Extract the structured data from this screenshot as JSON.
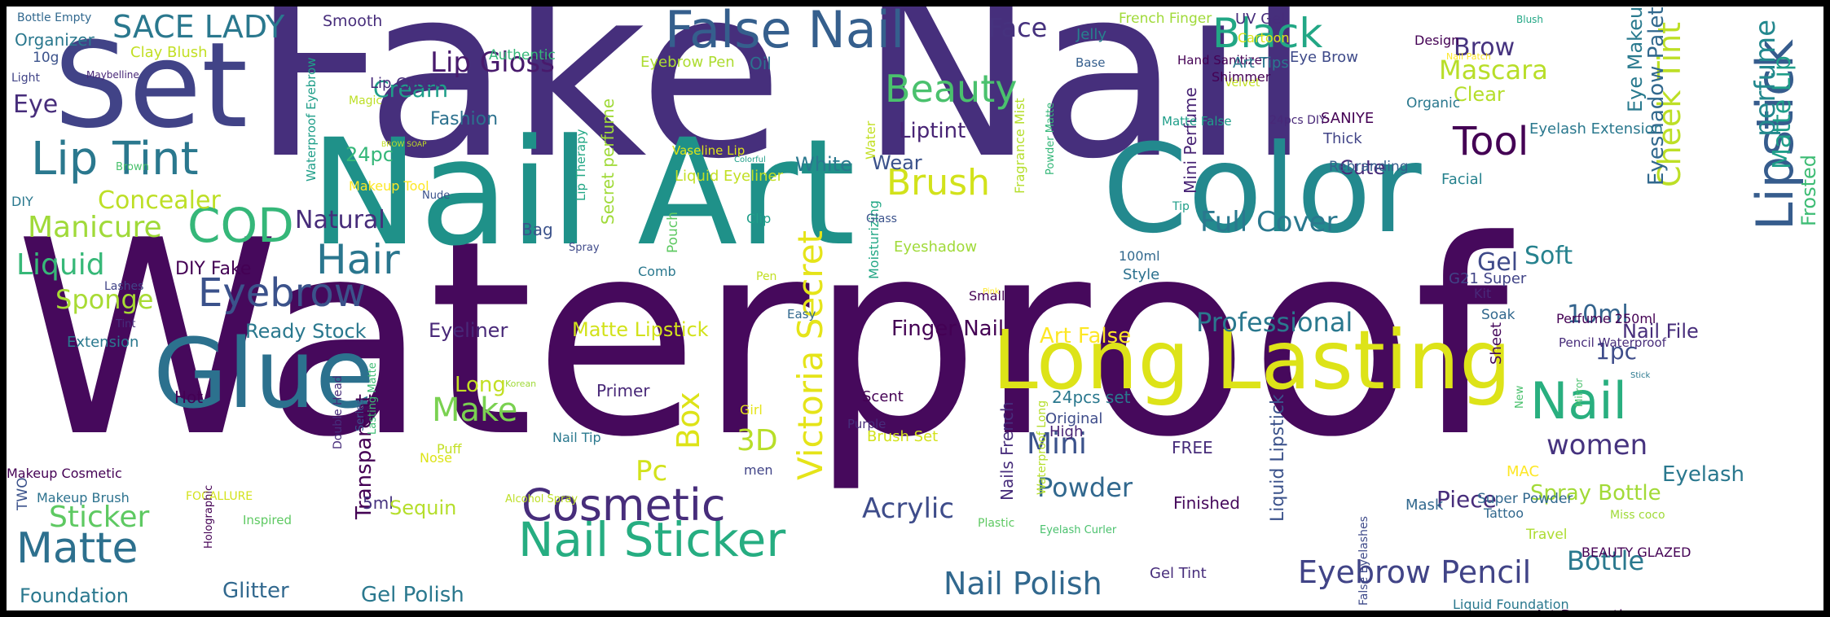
{
  "words": [
    {
      "text": "Waterproof",
      "color": "#46095c",
      "rotate": false
    },
    {
      "text": "Fake Nail",
      "color": "#462f7c",
      "rotate": false
    },
    {
      "text": "Nail Art",
      "color": "#1f9189",
      "rotate": false
    },
    {
      "text": "Makeup",
      "color": "#33608d",
      "rotate": true
    },
    {
      "text": "Color",
      "color": "#23898e",
      "rotate": false
    },
    {
      "text": "Set",
      "color": "#414387",
      "rotate": false
    },
    {
      "text": "Long Lasting",
      "color": "#dde318",
      "rotate": false
    },
    {
      "text": "Glue",
      "color": "#2c718e",
      "rotate": false
    },
    {
      "text": "False Nail",
      "color": "#355f8d",
      "rotate": false
    },
    {
      "text": "Nail Sticker",
      "color": "#26ad81",
      "rotate": false
    },
    {
      "text": "Lipstick",
      "color": "#365c8d",
      "rotate": true
    },
    {
      "text": "Cosmetic",
      "color": "#472d7b",
      "rotate": false
    },
    {
      "text": "Black",
      "color": "#22a785",
      "rotate": false
    },
    {
      "text": "Lip Tint",
      "color": "#2a788e",
      "rotate": false
    },
    {
      "text": "Victoria Secret",
      "color": "#e5e419",
      "rotate": true
    },
    {
      "text": "Nail",
      "color": "#29af7f",
      "rotate": false
    },
    {
      "text": "Matte",
      "color": "#2d708e",
      "rotate": false
    },
    {
      "text": "Beauty",
      "color": "#4ac16d",
      "rotate": false
    },
    {
      "text": "Brush",
      "color": "#d2e21b",
      "rotate": false
    },
    {
      "text": "Tool",
      "color": "#440154",
      "rotate": false
    },
    {
      "text": "COD",
      "color": "#35b779",
      "rotate": false
    },
    {
      "text": "Eyebrow Pencil",
      "color": "#414487",
      "rotate": false
    },
    {
      "text": "Hair",
      "color": "#2a768e",
      "rotate": false
    },
    {
      "text": "Eyebrow",
      "color": "#3b528b",
      "rotate": false
    },
    {
      "text": "Nail Polish",
      "color": "#31688e",
      "rotate": false
    },
    {
      "text": "Full Cover",
      "color": "#2a788e",
      "rotate": false
    },
    {
      "text": "Lip Gloss",
      "color": "#481a6c",
      "rotate": false
    },
    {
      "text": "SACE LADY",
      "color": "#2a788e",
      "rotate": false
    },
    {
      "text": "Professional",
      "color": "#2a788e",
      "rotate": false
    },
    {
      "text": "Makeup Cosmetic",
      "color": "#440154",
      "rotate": false
    },
    {
      "text": "Acrylic",
      "color": "#3e4c8a",
      "rotate": false
    },
    {
      "text": "Liptint",
      "color": "#482475",
      "rotate": false
    },
    {
      "text": "Face",
      "color": "#46327e",
      "rotate": false
    },
    {
      "text": "Mascara",
      "color": "#b8de29",
      "rotate": false
    },
    {
      "text": "Natural",
      "color": "#472c7a",
      "rotate": false
    },
    {
      "text": "Concealer",
      "color": "#bddf26",
      "rotate": false
    },
    {
      "text": "Manicure",
      "color": "#a0da39",
      "rotate": false
    },
    {
      "text": "Liquid",
      "color": "#37b878",
      "rotate": false
    },
    {
      "text": "Sponge",
      "color": "#a8db34",
      "rotate": false
    },
    {
      "text": "Sticker",
      "color": "#5ec962",
      "rotate": false
    },
    {
      "text": "Foundation",
      "color": "#2a788e",
      "rotate": false
    },
    {
      "text": "Glitter",
      "color": "#31688e",
      "rotate": false
    },
    {
      "text": "Gel Polish",
      "color": "#2a788e",
      "rotate": false
    },
    {
      "text": "Spray Bottle",
      "color": "#a2da37",
      "rotate": false
    },
    {
      "text": "Bottle",
      "color": "#2a788e",
      "rotate": false
    },
    {
      "text": "Mini",
      "color": "#3b528b",
      "rotate": false
    },
    {
      "text": "Powder",
      "color": "#31688e",
      "rotate": false
    },
    {
      "text": "Make",
      "color": "#7ad151",
      "rotate": false
    },
    {
      "text": "Box",
      "color": "#dde318",
      "rotate": true
    },
    {
      "text": "3D",
      "color": "#b8de29",
      "rotate": false
    },
    {
      "text": "Pc",
      "color": "#d2e21b",
      "rotate": false
    },
    {
      "text": "women",
      "color": "#46337f",
      "rotate": false
    },
    {
      "text": "Eyelash",
      "color": "#2a788e",
      "rotate": false
    },
    {
      "text": "Piece",
      "color": "#472d7b",
      "rotate": false
    },
    {
      "text": "Gel",
      "color": "#3e4a89",
      "rotate": false
    },
    {
      "text": "Soft",
      "color": "#26828e",
      "rotate": false
    },
    {
      "text": "10ml",
      "color": "#33638d",
      "rotate": false
    },
    {
      "text": "1pc",
      "color": "#3e4c8a",
      "rotate": false
    },
    {
      "text": "Cream",
      "color": "#1f9e89",
      "rotate": false
    },
    {
      "text": "Brow",
      "color": "#46337f",
      "rotate": false
    },
    {
      "text": "Eye",
      "color": "#472d7b",
      "rotate": false
    },
    {
      "text": "Finger Nail",
      "color": "#440154",
      "rotate": false
    },
    {
      "text": "Eyeliner",
      "color": "#482878",
      "rotate": false
    },
    {
      "text": "Ready Stock",
      "color": "#2a788e",
      "rotate": false
    },
    {
      "text": "Matte Lipstick",
      "color": "#d2e21b",
      "rotate": false
    },
    {
      "text": "Art False",
      "color": "#fde725",
      "rotate": false
    },
    {
      "text": "Nail File",
      "color": "#472d7b",
      "rotate": false
    },
    {
      "text": "Cheek Tint",
      "color": "#bddf26",
      "rotate": true
    },
    {
      "text": "Matte Lip",
      "color": "#1f9e89",
      "rotate": true
    },
    {
      "text": "perfume",
      "color": "#23888e",
      "rotate": true
    },
    {
      "text": "Eyeshadow Palette",
      "color": "#31688e",
      "rotate": true
    },
    {
      "text": "Frosted",
      "color": "#3dbc74",
      "rotate": true
    },
    {
      "text": "Eye Makeup",
      "color": "#297a8e",
      "rotate": true
    },
    {
      "text": "Fashion",
      "color": "#2c718e",
      "rotate": false
    },
    {
      "text": "24pc",
      "color": "#35b779",
      "rotate": false
    },
    {
      "text": "White",
      "color": "#2a788e",
      "rotate": false
    },
    {
      "text": "Wear",
      "color": "#3b528b",
      "rotate": false
    },
    {
      "text": "Cute",
      "color": "#472c7a",
      "rotate": false
    },
    {
      "text": "Clear",
      "color": "#b5de2b",
      "rotate": false
    },
    {
      "text": "Transparent",
      "color": "#440154",
      "rotate": true
    },
    {
      "text": "Liquid Lipstick",
      "color": "#3b528b",
      "rotate": true
    },
    {
      "text": "Nails French",
      "color": "#472d7b",
      "rotate": true
    },
    {
      "text": "Secret perfume",
      "color": "#a0da39",
      "rotate": true
    },
    {
      "text": "Mini Perfume",
      "color": "#482475",
      "rotate": true
    },
    {
      "text": "Long",
      "color": "#c2df23",
      "rotate": false
    },
    {
      "text": "Eyebrow Pen",
      "color": "#addc30",
      "rotate": false
    },
    {
      "text": "Oil",
      "color": "#2c718e",
      "rotate": false
    },
    {
      "text": "Organizer",
      "color": "#2a788e",
      "rotate": false
    },
    {
      "text": "Bottle Empty",
      "color": "#31688e",
      "rotate": false
    },
    {
      "text": "10g",
      "color": "#3b528b",
      "rotate": false
    },
    {
      "text": "Light",
      "color": "#414487",
      "rotate": false
    },
    {
      "text": "Clay Blush",
      "color": "#c2df23",
      "rotate": false
    },
    {
      "text": "Maybelline",
      "color": "#482878",
      "rotate": false
    },
    {
      "text": "Smooth",
      "color": "#472d7b",
      "rotate": false
    },
    {
      "text": "Authentic",
      "color": "#35b779",
      "rotate": false
    },
    {
      "text": "Lip Cheek",
      "color": "#472c7a",
      "rotate": false
    },
    {
      "text": "Magic",
      "color": "#bddf26",
      "rotate": false
    },
    {
      "text": "Waterproof Eyebrow",
      "color": "#1f9e89",
      "rotate": true
    },
    {
      "text": "Makeup Tool",
      "color": "#fde725",
      "rotate": false
    },
    {
      "text": "Brown",
      "color": "#4ac16d",
      "rotate": false
    },
    {
      "text": "Nude",
      "color": "#3b528b",
      "rotate": false
    },
    {
      "text": "BROW SOAP",
      "color": "#c2df23",
      "rotate": false
    },
    {
      "text": "Lip Therapy",
      "color": "#22a785",
      "rotate": true
    },
    {
      "text": "Bag",
      "color": "#3b528b",
      "rotate": false
    },
    {
      "text": "DIY Fake",
      "color": "#440154",
      "rotate": false
    },
    {
      "text": "DIY",
      "color": "#2a788e",
      "rotate": false
    },
    {
      "text": "Lashes",
      "color": "#414487",
      "rotate": false
    },
    {
      "text": "Tint",
      "color": "#472d7b",
      "rotate": false
    },
    {
      "text": "Extension",
      "color": "#2a788e",
      "rotate": false
    },
    {
      "text": "Hot",
      "color": "#440154",
      "rotate": false
    },
    {
      "text": "TWO",
      "color": "#3b528b",
      "rotate": true
    },
    {
      "text": "Makeup Brush",
      "color": "#2c728e",
      "rotate": false
    },
    {
      "text": "FOCALLURE",
      "color": "#d2e21b",
      "rotate": false
    },
    {
      "text": "Inspired",
      "color": "#5ec962",
      "rotate": false
    },
    {
      "text": "Holographic",
      "color": "#440154",
      "rotate": true
    },
    {
      "text": "Double Head",
      "color": "#472c7a",
      "rotate": true
    },
    {
      "text": "Series",
      "color": "#3b528b",
      "rotate": true
    },
    {
      "text": "Lasting Matte",
      "color": "#3dbc74",
      "rotate": true
    },
    {
      "text": "Nose",
      "color": "#dde318",
      "rotate": false
    },
    {
      "text": "Puff",
      "color": "#c2df23",
      "rotate": false
    },
    {
      "text": "5ml",
      "color": "#46337f",
      "rotate": false
    },
    {
      "text": "Sequin",
      "color": "#b5de2b",
      "rotate": false
    },
    {
      "text": "Primer",
      "color": "#482878",
      "rotate": false
    },
    {
      "text": "Nail Tip",
      "color": "#2a788e",
      "rotate": false
    },
    {
      "text": "Korean",
      "color": "#a0da39",
      "rotate": false
    },
    {
      "text": "Girl",
      "color": "#e5e419",
      "rotate": false
    },
    {
      "text": "Alcohol Spray",
      "color": "#bddf26",
      "rotate": false
    },
    {
      "text": "men",
      "color": "#414487",
      "rotate": false
    },
    {
      "text": "Pouch",
      "color": "#5ec962",
      "rotate": true
    },
    {
      "text": "Spray",
      "color": "#3e4989",
      "rotate": false
    },
    {
      "text": "Pen",
      "color": "#c2df23",
      "rotate": false
    },
    {
      "text": "Moisturizing",
      "color": "#22a785",
      "rotate": true
    },
    {
      "text": "Comb",
      "color": "#2a788e",
      "rotate": false
    },
    {
      "text": "Clip",
      "color": "#1f9e89",
      "rotate": false
    },
    {
      "text": "Easy",
      "color": "#31688e",
      "rotate": false
    },
    {
      "text": "Scent",
      "color": "#440154",
      "rotate": false
    },
    {
      "text": "Brush Set",
      "color": "#d2e21b",
      "rotate": false
    },
    {
      "text": "Purple",
      "color": "#472c7a",
      "rotate": false
    },
    {
      "text": "Plastic",
      "color": "#5ec962",
      "rotate": false
    },
    {
      "text": "Eyelash Curler",
      "color": "#4ac16d",
      "rotate": false
    },
    {
      "text": "Waterproof Long",
      "color": "#b5de2b",
      "rotate": true
    },
    {
      "text": "Water",
      "color": "#c2df23",
      "rotate": true
    },
    {
      "text": "Eyeshadow",
      "color": "#a0da39",
      "rotate": false
    },
    {
      "text": "Small",
      "color": "#440154",
      "rotate": false
    },
    {
      "text": "Pink",
      "color": "#fde725",
      "rotate": false
    },
    {
      "text": "Glass",
      "color": "#3b528b",
      "rotate": false
    },
    {
      "text": "Original",
      "color": "#3e4c8a",
      "rotate": false
    },
    {
      "text": "24pcs set",
      "color": "#2a788e",
      "rotate": false
    },
    {
      "text": "High",
      "color": "#482475",
      "rotate": false
    },
    {
      "text": "FREE",
      "color": "#472c7a",
      "rotate": false
    },
    {
      "text": "Finished",
      "color": "#46095c",
      "rotate": false
    },
    {
      "text": "Gel Tint",
      "color": "#472d7b",
      "rotate": false
    },
    {
      "text": "French Finger",
      "color": "#a0da39",
      "rotate": false
    },
    {
      "text": "Jelly",
      "color": "#27808e",
      "rotate": false
    },
    {
      "text": "Base",
      "color": "#355f8d",
      "rotate": false
    },
    {
      "text": "Hand Sanitizer",
      "color": "#440154",
      "rotate": false
    },
    {
      "text": "Matte False",
      "color": "#1f9e89",
      "rotate": false
    },
    {
      "text": "Fragrance Mist",
      "color": "#b5de2b",
      "rotate": true
    },
    {
      "text": "Powder Matte",
      "color": "#35b779",
      "rotate": true
    },
    {
      "text": "100ml",
      "color": "#31688e",
      "rotate": false
    },
    {
      "text": "Style",
      "color": "#2c718e",
      "rotate": false
    },
    {
      "text": "Tip",
      "color": "#1f9e89",
      "rotate": false
    },
    {
      "text": "UV Gel",
      "color": "#472d7b",
      "rotate": false
    },
    {
      "text": "Cartoon",
      "color": "#dde318",
      "rotate": false
    },
    {
      "text": "Art Tips",
      "color": "#2a788e",
      "rotate": false
    },
    {
      "text": "Velvet",
      "color": "#c2df23",
      "rotate": false
    },
    {
      "text": "Eye Brow",
      "color": "#3e4a89",
      "rotate": false
    },
    {
      "text": "24pcs DIY",
      "color": "#482878",
      "rotate": false
    },
    {
      "text": "Shimmer",
      "color": "#440154",
      "rotate": false
    },
    {
      "text": "SANIYE",
      "color": "#440154",
      "rotate": false
    },
    {
      "text": "Thick",
      "color": "#414487",
      "rotate": false
    },
    {
      "text": "Rebranding",
      "color": "#355f8d",
      "rotate": false
    },
    {
      "text": "Nail Patch",
      "color": "#fde725",
      "rotate": false
    },
    {
      "text": "Design",
      "color": "#440154",
      "rotate": false
    },
    {
      "text": "Organic",
      "color": "#2a788e",
      "rotate": false
    },
    {
      "text": "Blush",
      "color": "#22a785",
      "rotate": false
    },
    {
      "text": "Eyelash Extension",
      "color": "#2a788e",
      "rotate": false
    },
    {
      "text": "Vaseline Lip",
      "color": "#dde318",
      "rotate": false
    },
    {
      "text": "Liquid Eyeliner",
      "color": "#c2df23",
      "rotate": false
    },
    {
      "text": "Colorful",
      "color": "#1f9e89",
      "rotate": false
    },
    {
      "text": "Facial",
      "color": "#26828e",
      "rotate": false
    },
    {
      "text": "G21 Super",
      "color": "#414487",
      "rotate": false
    },
    {
      "text": "Kit",
      "color": "#482878",
      "rotate": false
    },
    {
      "text": "Soak",
      "color": "#31688e",
      "rotate": false
    },
    {
      "text": "Perfume 250ml",
      "color": "#440154",
      "rotate": false
    },
    {
      "text": "Pencil Waterproof",
      "color": "#472c7a",
      "rotate": false
    },
    {
      "text": "Sheet",
      "color": "#46095c",
      "rotate": true
    },
    {
      "text": "New",
      "color": "#4ac16d",
      "rotate": true
    },
    {
      "text": "Mirror",
      "color": "#4ac16d",
      "rotate": true
    },
    {
      "text": "Stick",
      "color": "#2a788e",
      "rotate": false
    },
    {
      "text": "Mask",
      "color": "#31688e",
      "rotate": false
    },
    {
      "text": "MAC",
      "color": "#fde725",
      "rotate": false
    },
    {
      "text": "Super Powder",
      "color": "#31688e",
      "rotate": false
    },
    {
      "text": "Tattoo",
      "color": "#31688e",
      "rotate": false
    },
    {
      "text": "Travel",
      "color": "#addc30",
      "rotate": false
    },
    {
      "text": "Miss coco",
      "color": "#a0da39",
      "rotate": false
    },
    {
      "text": "BEAUTY GLAZED",
      "color": "#440154",
      "rotate": false
    },
    {
      "text": "Art Decoration",
      "color": "#440154",
      "rotate": false
    },
    {
      "text": "Liquid Foundation",
      "color": "#2a788e",
      "rotate": false
    },
    {
      "text": "False Eyelashes",
      "color": "#3e4a89",
      "rotate": true
    }
  ]
}
